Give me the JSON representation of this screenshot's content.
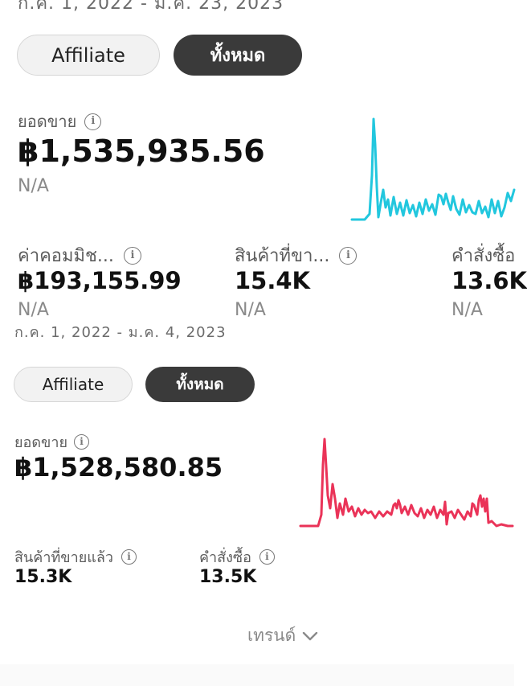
{
  "card1": {
    "date_range": "ก.ค. 1, 2022 - ม.ค. 23, 2023",
    "toggle_affiliate": "Affiliate",
    "toggle_all": "ทั้งหมด",
    "sales_label": "ยอดขาย",
    "sales_value": "฿1,535,935.56",
    "sales_change": "N/A",
    "chart_color": "#22c7de",
    "metrics": [
      {
        "label": "ค่าคอมมิช...",
        "value": "฿193,155.99",
        "change": "N/A"
      },
      {
        "label": "สินค้าที่ขา...",
        "value": "15.4K",
        "change": "N/A"
      },
      {
        "label": "คำสั่งซื้อ",
        "value": "13.6K",
        "change": "N/A"
      }
    ]
  },
  "card2": {
    "date_range": "ก.ค. 1, 2022 - ม.ค. 4, 2023",
    "toggle_affiliate": "Affiliate",
    "toggle_all": "ทั้งหมด",
    "sales_label": "ยอดขาย",
    "sales_value": "฿1,528,580.85",
    "chart_color": "#ea3358",
    "metrics": [
      {
        "label": "สินค้าที่ขายแล้ว",
        "value": "15.3K"
      },
      {
        "label": "คำสั่งซื้อ",
        "value": "13.5K"
      }
    ]
  },
  "trend": {
    "label": "เทรนด์",
    "icon": "chevron-down-icon"
  }
}
